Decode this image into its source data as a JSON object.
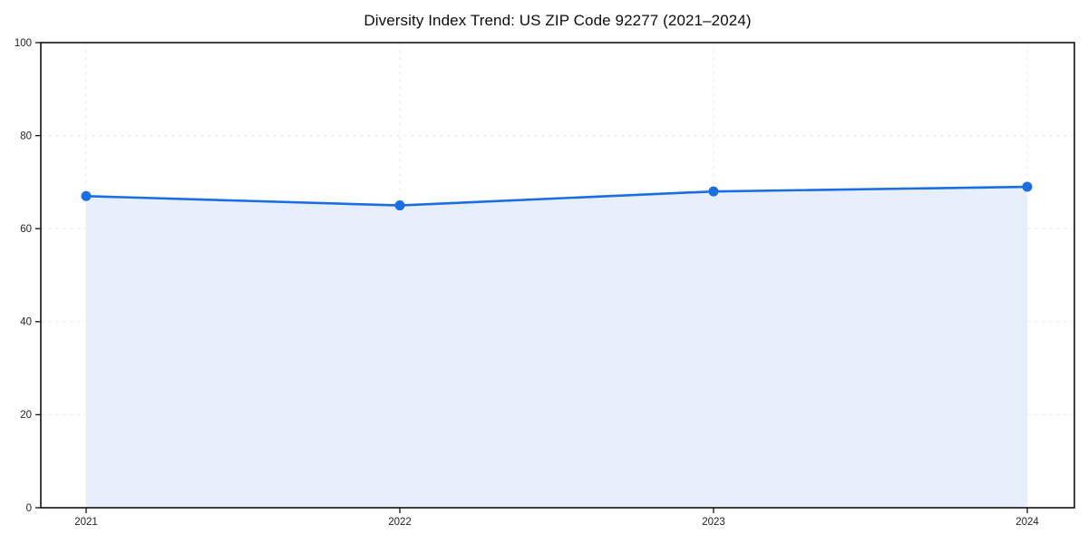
{
  "chart_data": {
    "type": "area",
    "title": "Diversity Index Trend: US ZIP Code 92277 (2021–2024)",
    "categories": [
      "2021",
      "2022",
      "2023",
      "2024"
    ],
    "series": [
      {
        "name": "Diversity Index",
        "values": [
          67,
          65,
          68,
          69
        ]
      }
    ],
    "xlabel": "",
    "ylabel": "",
    "ylim": [
      0,
      100
    ],
    "yticks": [
      0,
      20,
      40,
      60,
      80,
      100
    ],
    "grid": true,
    "grid_style": "dashed",
    "legend": "none",
    "colors": {
      "line": "#1a6ee3",
      "marker": "#1a6ee3",
      "fill": "#e8effc",
      "gridline": "#ececec",
      "spine": "#111111",
      "tick_label": "#222222",
      "background": "#ffffff"
    }
  }
}
